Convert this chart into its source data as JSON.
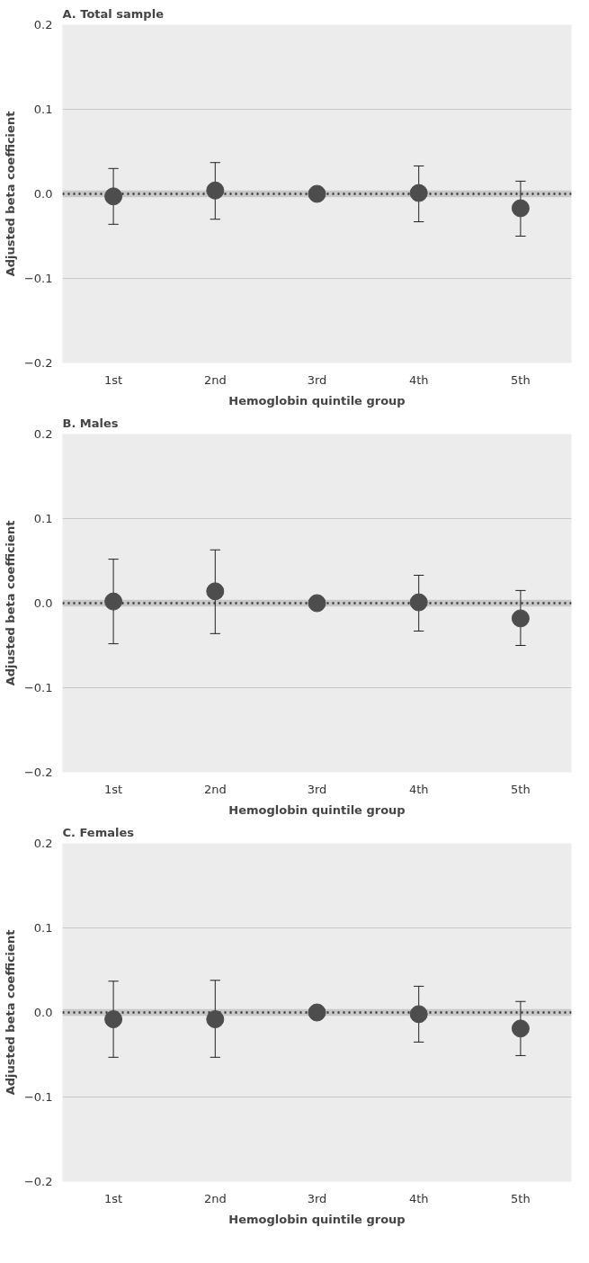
{
  "chart_data": [
    {
      "type": "scatter",
      "title": "A. Total sample",
      "xlabel": "Hemoglobin quintile group",
      "ylabel": "Adjusted beta coefficient",
      "categories": [
        "1st",
        "2nd",
        "3rd",
        "4th",
        "5th"
      ],
      "values": [
        -0.003,
        0.004,
        0.0,
        0.001,
        -0.017
      ],
      "errors": [
        [
          -0.036,
          0.03
        ],
        [
          -0.03,
          0.037
        ],
        null,
        [
          -0.033,
          0.033
        ],
        [
          -0.05,
          0.015
        ]
      ],
      "color": "#4d4d4d",
      "marker": "circle",
      "ylim": [
        -0.2,
        0.2
      ],
      "yticks": [
        {
          "value": -0.2,
          "label": "−0.2"
        },
        {
          "value": -0.1,
          "label": "−0.1"
        },
        {
          "value": 0,
          "label": "0.0"
        },
        {
          "value": 0.1,
          "label": "0.1"
        },
        {
          "value": 0.2,
          "label": "0.2"
        }
      ],
      "grid": "y",
      "ref_lines": [
        {
          "axis": "y",
          "value": 0,
          "color": "#333333",
          "line_style": "dotted"
        }
      ],
      "bands": [
        {
          "axis": "y",
          "from": -0.004,
          "to": 0.004,
          "color": "#c8c8c8"
        }
      ]
    },
    {
      "type": "scatter",
      "title": "B. Males",
      "xlabel": "Hemoglobin quintile group",
      "ylabel": "Adjusted beta coefficient",
      "categories": [
        "1st",
        "2nd",
        "3rd",
        "4th",
        "5th"
      ],
      "values": [
        0.002,
        0.014,
        0.0,
        0.001,
        -0.018
      ],
      "errors": [
        [
          -0.048,
          0.052
        ],
        [
          -0.036,
          0.063
        ],
        null,
        [
          -0.033,
          0.033
        ],
        [
          -0.05,
          0.015
        ]
      ],
      "color": "#4d4d4d",
      "marker": "circle",
      "ylim": [
        -0.2,
        0.2
      ],
      "yticks": [
        {
          "value": -0.2,
          "label": "−0.2"
        },
        {
          "value": -0.1,
          "label": "−0.1"
        },
        {
          "value": 0,
          "label": "0.0"
        },
        {
          "value": 0.1,
          "label": "0.1"
        },
        {
          "value": 0.2,
          "label": "0.2"
        }
      ],
      "grid": "y",
      "ref_lines": [
        {
          "axis": "y",
          "value": 0,
          "color": "#333333",
          "line_style": "dotted"
        }
      ],
      "bands": [
        {
          "axis": "y",
          "from": -0.004,
          "to": 0.004,
          "color": "#c8c8c8"
        }
      ]
    },
    {
      "type": "scatter",
      "title": "C. Females",
      "xlabel": "Hemoglobin quintile group",
      "ylabel": "Adjusted beta coefficient",
      "categories": [
        "1st",
        "2nd",
        "3rd",
        "4th",
        "5th"
      ],
      "values": [
        -0.008,
        -0.008,
        0.0,
        -0.002,
        -0.019
      ],
      "errors": [
        [
          -0.053,
          0.037
        ],
        [
          -0.053,
          0.038
        ],
        null,
        [
          -0.035,
          0.031
        ],
        [
          -0.051,
          0.013
        ]
      ],
      "color": "#4d4d4d",
      "marker": "circle",
      "ylim": [
        -0.2,
        0.2
      ],
      "yticks": [
        {
          "value": -0.2,
          "label": "−0.2"
        },
        {
          "value": -0.1,
          "label": "−0.1"
        },
        {
          "value": 0,
          "label": "0.0"
        },
        {
          "value": 0.1,
          "label": "0.1"
        },
        {
          "value": 0.2,
          "label": "0.2"
        }
      ],
      "grid": "y",
      "ref_lines": [
        {
          "axis": "y",
          "value": 0,
          "color": "#333333",
          "line_style": "dotted"
        }
      ],
      "bands": [
        {
          "axis": "y",
          "from": -0.004,
          "to": 0.004,
          "color": "#c8c8c8"
        }
      ]
    }
  ]
}
